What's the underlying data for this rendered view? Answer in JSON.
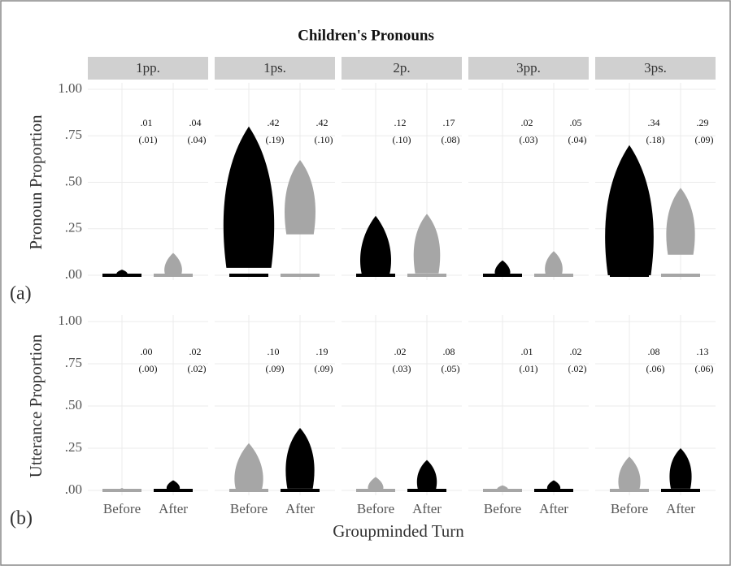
{
  "chart_data": [
    {
      "type": "swarm",
      "title": "Children's Pronouns",
      "panel_label": "(a)",
      "y_label": "Pronoun Proportion",
      "facets": [
        "1pp.",
        "1ps.",
        "2p.",
        "3pp.",
        "3ps."
      ],
      "ylim": [
        0,
        1
      ],
      "yticks": [
        {
          "value": 0,
          "label": ".00"
        },
        {
          "value": 0.25,
          "label": ".25"
        },
        {
          "value": 0.5,
          "label": ".50"
        },
        {
          "value": 0.75,
          "label": ".75"
        },
        {
          "value": 1,
          "label": "1.00"
        }
      ],
      "series": [
        {
          "color": "#000000",
          "means": [
            0.01,
            0.42,
            0.12,
            0.02,
            0.34
          ],
          "mean_labels": [
            ".01",
            ".42",
            ".12",
            ".02",
            ".34"
          ],
          "sds": [
            0.01,
            0.19,
            0.1,
            0.03,
            0.18
          ],
          "sd_labels": [
            "(.01)",
            "(.19)",
            "(.10)",
            "(.03)",
            "(.18)"
          ]
        },
        {
          "color": "#a6a6a6",
          "means": [
            0.04,
            0.42,
            0.17,
            0.05,
            0.29
          ],
          "mean_labels": [
            ".04",
            ".42",
            ".17",
            ".05",
            ".29"
          ],
          "sds": [
            0.04,
            0.1,
            0.08,
            0.04,
            0.09
          ],
          "sd_labels": [
            "(.04)",
            "(.10)",
            "(.08)",
            "(.04)",
            "(.09)"
          ]
        }
      ]
    },
    {
      "type": "swarm",
      "panel_label": "(b)",
      "y_label": "Utterance Proportion",
      "x_label": "Groupminded Turn",
      "categories": [
        "Before",
        "After"
      ],
      "ylim": [
        0,
        1
      ],
      "yticks": [
        {
          "value": 0,
          "label": ".00"
        },
        {
          "value": 0.25,
          "label": ".25"
        },
        {
          "value": 0.5,
          "label": ".50"
        },
        {
          "value": 0.75,
          "label": ".75"
        },
        {
          "value": 1,
          "label": "1.00"
        }
      ],
      "series": [
        {
          "color": "#a6a6a6",
          "means": [
            0.0,
            0.1,
            0.02,
            0.01,
            0.08
          ],
          "mean_labels": [
            ".00",
            ".10",
            ".02",
            ".01",
            ".08"
          ],
          "sds": [
            0.0,
            0.09,
            0.03,
            0.01,
            0.06
          ],
          "sd_labels": [
            "(.00)",
            "(.09)",
            "(.03)",
            "(.01)",
            "(.06)"
          ]
        },
        {
          "color": "#000000",
          "means": [
            0.02,
            0.19,
            0.08,
            0.02,
            0.13
          ],
          "mean_labels": [
            ".02",
            ".19",
            ".08",
            ".02",
            ".13"
          ],
          "sds": [
            0.02,
            0.09,
            0.05,
            0.02,
            0.06
          ],
          "sd_labels": [
            "(.02)",
            "(.09)",
            "(.05)",
            "(.02)",
            "(.06)"
          ]
        }
      ]
    }
  ]
}
